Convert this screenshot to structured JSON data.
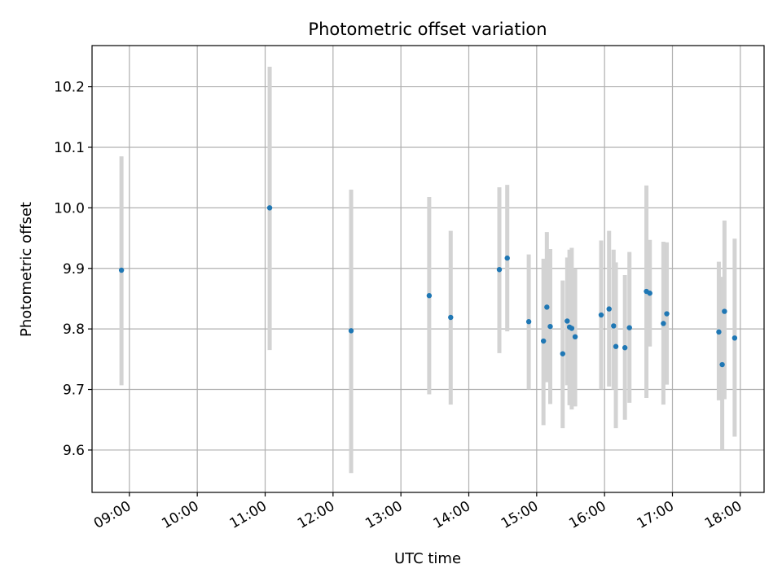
{
  "chart_data": {
    "type": "scatter",
    "title": "Photometric offset variation",
    "xlabel": "UTC time",
    "ylabel": "Photometric offset",
    "xlim": [
      "08:27",
      "18:21"
    ],
    "ylim": [
      9.53,
      10.268
    ],
    "grid": true,
    "x_ticks": [
      "09:00",
      "10:00",
      "11:00",
      "12:00",
      "13:00",
      "14:00",
      "15:00",
      "16:00",
      "17:00",
      "18:00"
    ],
    "y_ticks": [
      "9.6",
      "9.7",
      "9.8",
      "9.9",
      "10.0",
      "10.1",
      "10.2"
    ],
    "colors": {
      "points": "#1f77b4",
      "error_bars": "#d3d3d3"
    },
    "series": [
      {
        "points": [
          {
            "x": "08:53",
            "y": 9.897,
            "err_low": 9.707,
            "err_high": 10.085
          },
          {
            "x": "11:04",
            "y": 10.0,
            "err_low": 9.765,
            "err_high": 10.233
          },
          {
            "x": "12:16",
            "y": 9.797,
            "err_low": 9.562,
            "err_high": 10.03
          },
          {
            "x": "13:25",
            "y": 9.855,
            "err_low": 9.692,
            "err_high": 10.018
          },
          {
            "x": "13:44",
            "y": 9.819,
            "err_low": 9.675,
            "err_high": 9.962
          },
          {
            "x": "14:27",
            "y": 9.898,
            "err_low": 9.76,
            "err_high": 10.034
          },
          {
            "x": "14:34",
            "y": 9.917,
            "err_low": 9.796,
            "err_high": 10.038
          },
          {
            "x": "14:53",
            "y": 9.812,
            "err_low": 9.7,
            "err_high": 9.923
          },
          {
            "x": "15:06",
            "y": 9.78,
            "err_low": 9.641,
            "err_high": 9.916
          },
          {
            "x": "15:09",
            "y": 9.836,
            "err_low": 9.712,
            "err_high": 9.96
          },
          {
            "x": "15:12",
            "y": 9.804,
            "err_low": 9.676,
            "err_high": 9.932
          },
          {
            "x": "15:23",
            "y": 9.759,
            "err_low": 9.636,
            "err_high": 9.88
          },
          {
            "x": "15:27",
            "y": 9.813,
            "err_low": 9.707,
            "err_high": 9.918
          },
          {
            "x": "15:29",
            "y": 9.803,
            "err_low": 9.674,
            "err_high": 9.931
          },
          {
            "x": "15:31",
            "y": 9.801,
            "err_low": 9.667,
            "err_high": 9.934
          },
          {
            "x": "15:34",
            "y": 9.787,
            "err_low": 9.672,
            "err_high": 9.9
          },
          {
            "x": "15:57",
            "y": 9.823,
            "err_low": 9.7,
            "err_high": 9.946
          },
          {
            "x": "16:04",
            "y": 9.833,
            "err_low": 9.705,
            "err_high": 9.962
          },
          {
            "x": "16:08",
            "y": 9.805,
            "err_low": 9.7,
            "err_high": 9.931
          },
          {
            "x": "16:10",
            "y": 9.771,
            "err_low": 9.636,
            "err_high": 9.91
          },
          {
            "x": "16:18",
            "y": 9.769,
            "err_low": 9.65,
            "err_high": 9.889
          },
          {
            "x": "16:22",
            "y": 9.802,
            "err_low": 9.678,
            "err_high": 9.927
          },
          {
            "x": "16:37",
            "y": 9.862,
            "err_low": 9.686,
            "err_high": 10.037
          },
          {
            "x": "16:40",
            "y": 9.859,
            "err_low": 9.771,
            "err_high": 9.947
          },
          {
            "x": "16:52",
            "y": 9.809,
            "err_low": 9.675,
            "err_high": 9.944
          },
          {
            "x": "16:55",
            "y": 9.825,
            "err_low": 9.708,
            "err_high": 9.943
          },
          {
            "x": "17:41",
            "y": 9.795,
            "err_low": 9.682,
            "err_high": 9.911
          },
          {
            "x": "17:44",
            "y": 9.741,
            "err_low": 9.6,
            "err_high": 9.886
          },
          {
            "x": "17:46",
            "y": 9.829,
            "err_low": 9.684,
            "err_high": 9.979
          },
          {
            "x": "17:55",
            "y": 9.785,
            "err_low": 9.622,
            "err_high": 9.949
          }
        ]
      }
    ]
  }
}
